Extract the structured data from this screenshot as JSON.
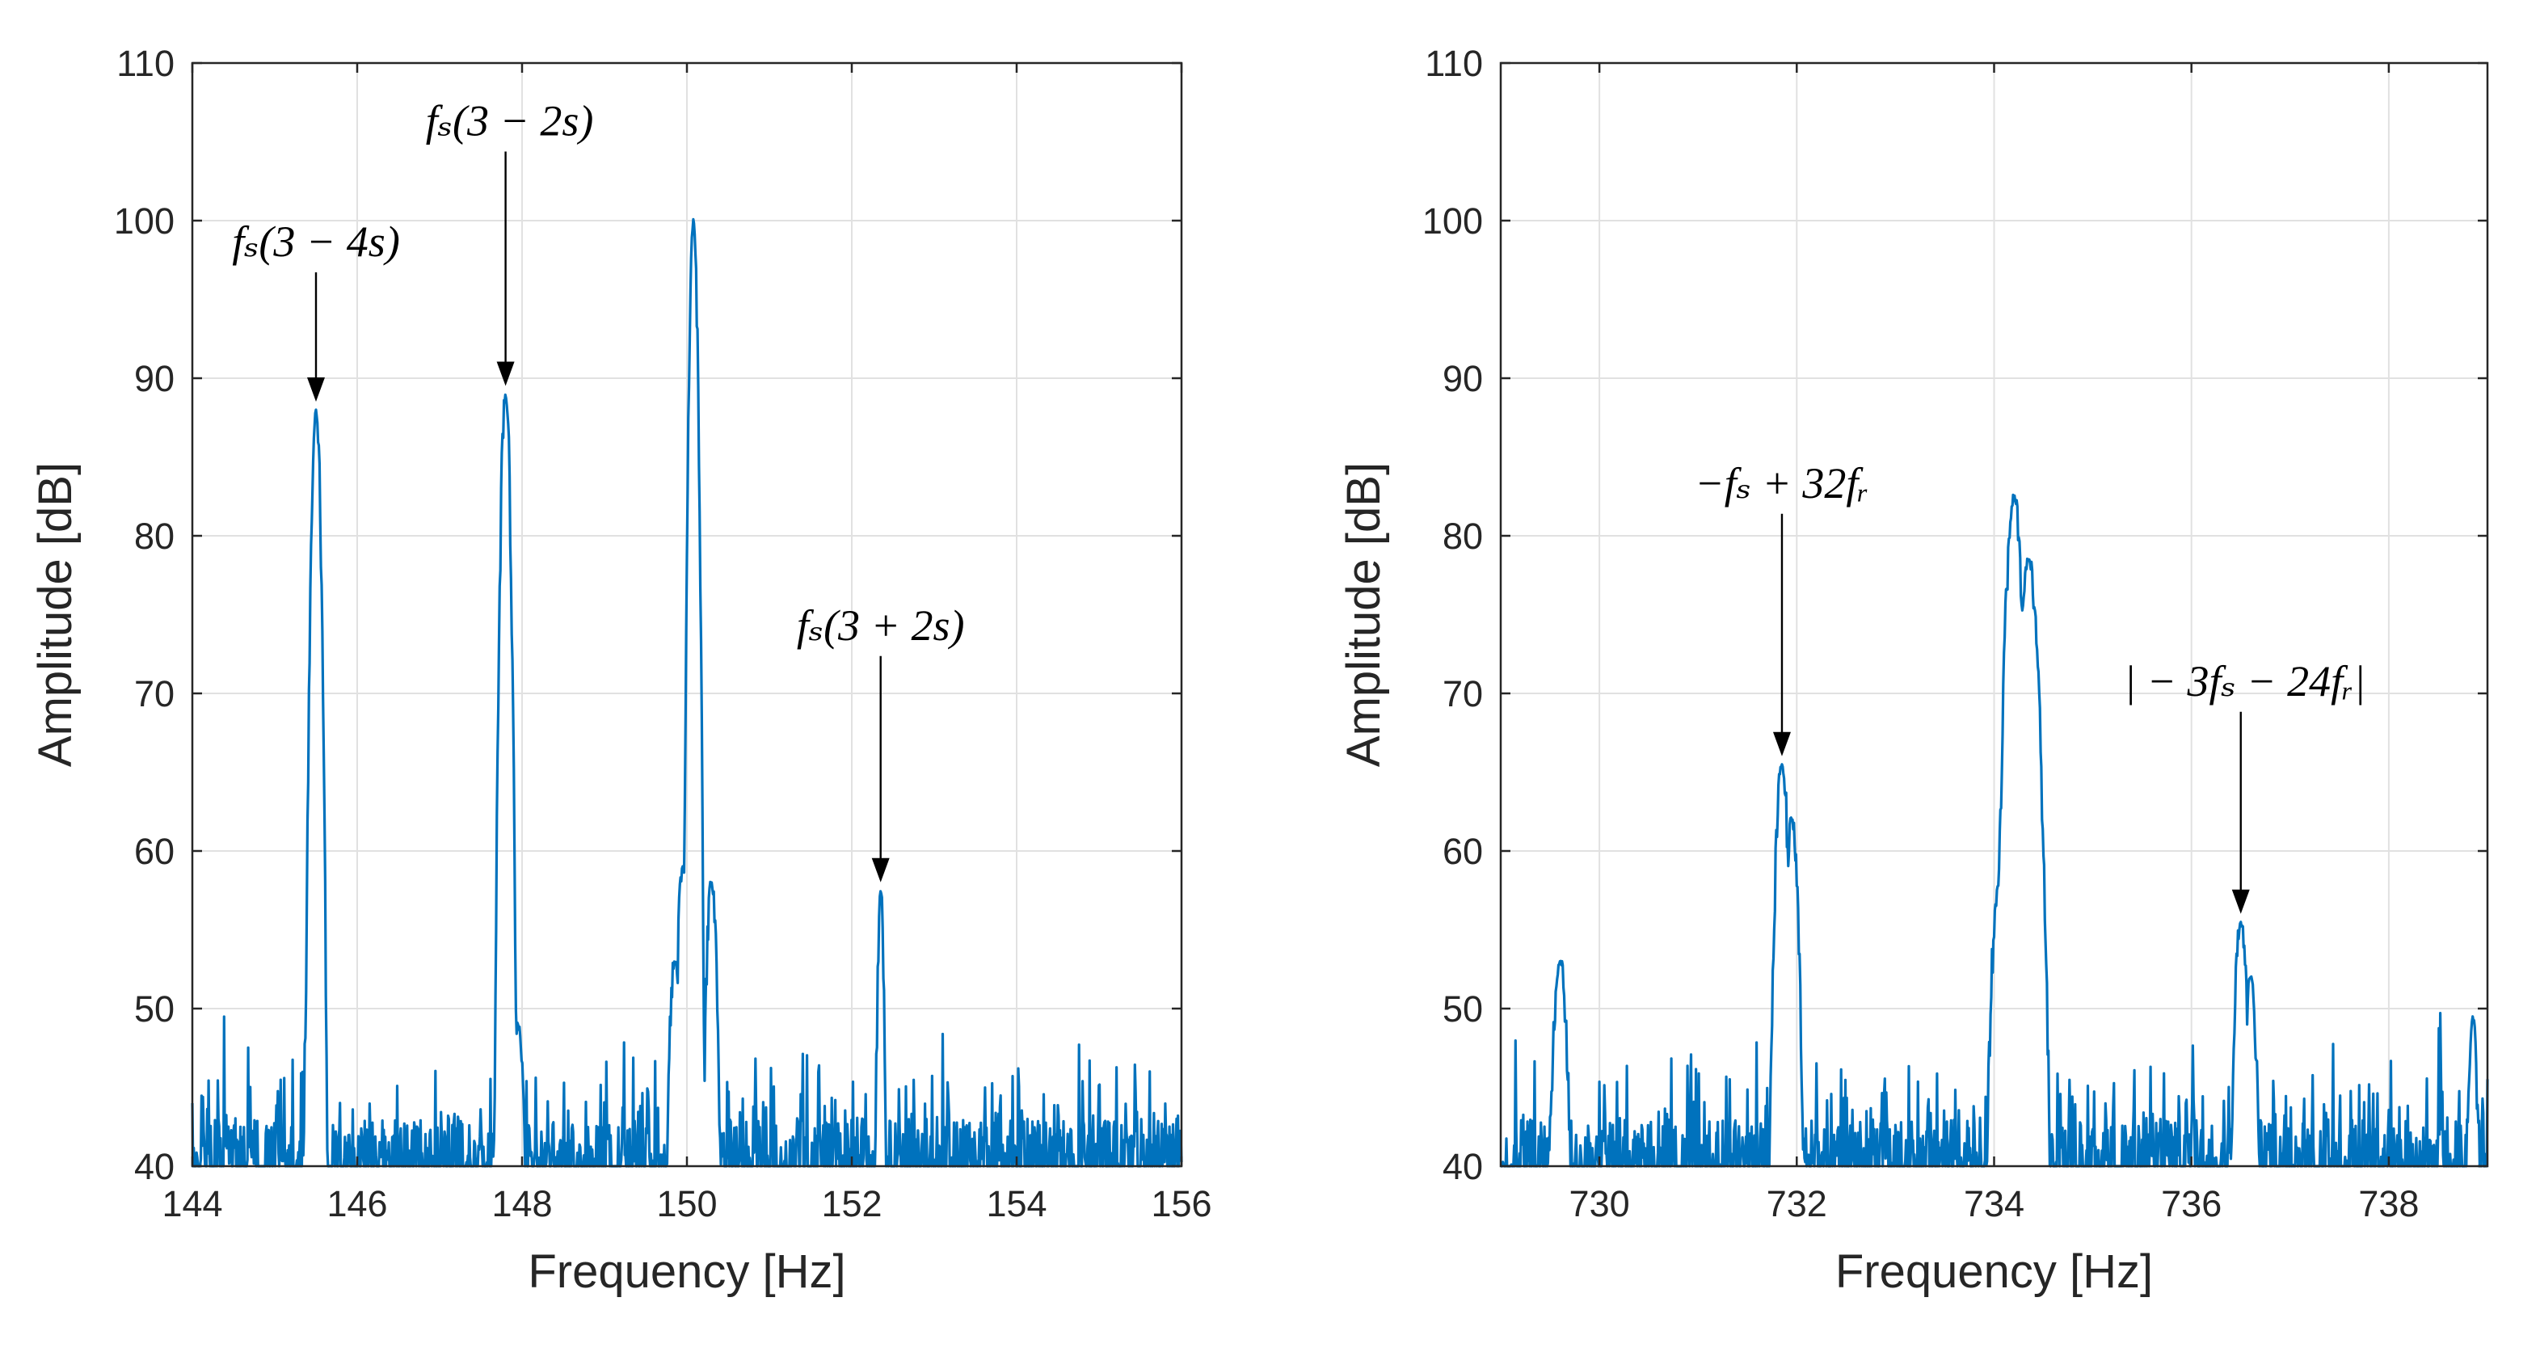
{
  "chart_data": [
    {
      "type": "line",
      "title": "",
      "xlabel": "Frequency [Hz]",
      "ylabel": "Amplitude [dB]",
      "xlim": [
        144,
        156
      ],
      "ylim": [
        40,
        110
      ],
      "xticks": [
        "144",
        "146",
        "148",
        "150",
        "152",
        "154",
        "156"
      ],
      "yticks": [
        "40",
        "50",
        "60",
        "70",
        "80",
        "90",
        "100",
        "110"
      ],
      "grid": true,
      "series": [
        {
          "name": "spectrum",
          "color": "#0072bd"
        }
      ],
      "peaks": [
        {
          "x": 145.5,
          "y": 88,
          "width": 0.04
        },
        {
          "x": 147.8,
          "y": 89,
          "width": 0.04
        },
        {
          "x": 150.08,
          "y": 100,
          "width": 0.035
        },
        {
          "x": 149.95,
          "y": 59,
          "width": 0.05
        },
        {
          "x": 150.3,
          "y": 58,
          "width": 0.05
        },
        {
          "x": 149.85,
          "y": 53,
          "width": 0.05
        },
        {
          "x": 152.35,
          "y": 57.5,
          "width": 0.03
        },
        {
          "x": 147.95,
          "y": 49,
          "width": 0.06
        }
      ],
      "annotations": [
        {
          "text": "fₛ(3 − 4s)",
          "x": 145.5,
          "y": 88
        },
        {
          "text": "fₛ(3 − 2s)",
          "x": 147.8,
          "y": 89
        },
        {
          "text": "fₛ(3 + 2s)",
          "x": 152.35,
          "y": 57.5
        }
      ]
    },
    {
      "type": "line",
      "title": "",
      "xlabel": "Frequency [Hz]",
      "ylabel": "Amplitude [dB]",
      "xlim": [
        729,
        739
      ],
      "ylim": [
        40,
        110
      ],
      "xticks": [
        "730",
        "732",
        "734",
        "736",
        "738"
      ],
      "yticks": [
        "40",
        "50",
        "60",
        "70",
        "80",
        "90",
        "100",
        "110"
      ],
      "grid": true,
      "series": [
        {
          "name": "spectrum",
          "color": "#0072bd"
        }
      ],
      "peaks": [
        {
          "x": 731.85,
          "y": 65.5,
          "width": 0.05
        },
        {
          "x": 731.95,
          "y": 62,
          "width": 0.05
        },
        {
          "x": 734.2,
          "y": 82.5,
          "width": 0.06
        },
        {
          "x": 734.35,
          "y": 78.5,
          "width": 0.07
        },
        {
          "x": 734.05,
          "y": 58,
          "width": 0.06
        },
        {
          "x": 736.5,
          "y": 55.5,
          "width": 0.05
        },
        {
          "x": 736.6,
          "y": 52,
          "width": 0.05
        },
        {
          "x": 729.6,
          "y": 53,
          "width": 0.06
        },
        {
          "x": 738.85,
          "y": 49.5,
          "width": 0.04
        }
      ],
      "annotations": [
        {
          "text": "−fₛ + 32fᵣ",
          "x": 731.85,
          "y": 65.5
        },
        {
          "text": "| − 3fₛ − 24fᵣ|",
          "x": 736.5,
          "y": 55.5
        }
      ]
    }
  ]
}
